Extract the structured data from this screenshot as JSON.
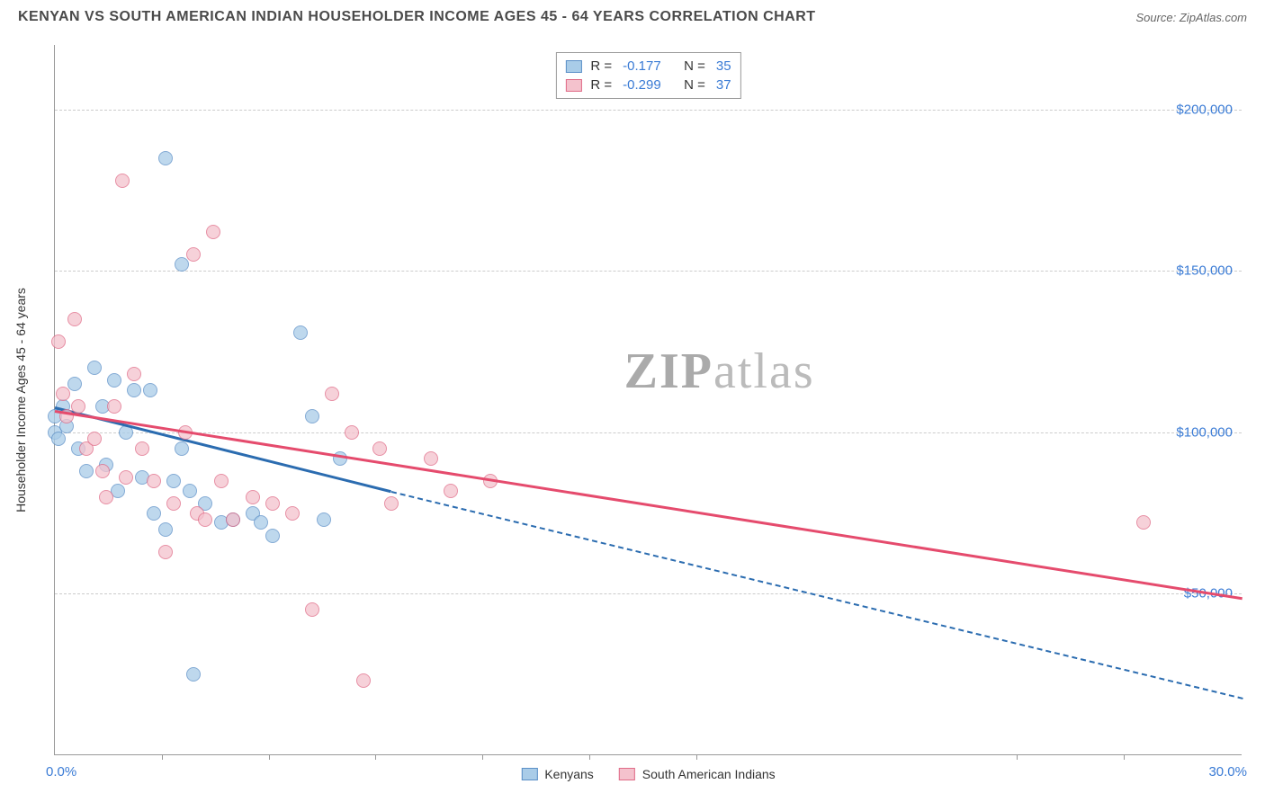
{
  "title": "KENYAN VS SOUTH AMERICAN INDIAN HOUSEHOLDER INCOME AGES 45 - 64 YEARS CORRELATION CHART",
  "source": "Source: ZipAtlas.com",
  "watermark_zip": "ZIP",
  "watermark_atlas": "atlas",
  "chart": {
    "type": "scatter",
    "y_axis_title": "Householder Income Ages 45 - 64 years",
    "xlim": [
      0,
      30
    ],
    "ylim": [
      0,
      220000
    ],
    "x_start_label": "0.0%",
    "x_end_label": "30.0%",
    "x_ticks": [
      2.7,
      5.4,
      8.1,
      10.8,
      13.5,
      16.2,
      24.3,
      27.0
    ],
    "y_ticks": [
      {
        "v": 50000,
        "label": "$50,000"
      },
      {
        "v": 100000,
        "label": "$100,000"
      },
      {
        "v": 150000,
        "label": "$150,000"
      },
      {
        "v": 200000,
        "label": "$200,000"
      }
    ],
    "background_color": "#ffffff",
    "grid_color": "#cccccc",
    "watermark_color": "#bbbbbb",
    "point_radius": 8,
    "series": [
      {
        "name": "Kenyans",
        "fill": "#a9cce8",
        "stroke": "#5b8fc7",
        "line_color": "#2b6cb0",
        "R": "-0.177",
        "N": "35",
        "trend": {
          "x1": 0.0,
          "y1": 108000,
          "x2": 8.5,
          "y2": 82000,
          "dash_x2": 30,
          "dash_y2": 18000
        },
        "points": [
          {
            "x": 0.0,
            "y": 105000
          },
          {
            "x": 0.0,
            "y": 100000
          },
          {
            "x": 0.1,
            "y": 98000
          },
          {
            "x": 0.2,
            "y": 108000
          },
          {
            "x": 0.3,
            "y": 102000
          },
          {
            "x": 0.5,
            "y": 115000
          },
          {
            "x": 0.6,
            "y": 95000
          },
          {
            "x": 0.8,
            "y": 88000
          },
          {
            "x": 1.0,
            "y": 120000
          },
          {
            "x": 1.2,
            "y": 108000
          },
          {
            "x": 1.3,
            "y": 90000
          },
          {
            "x": 1.5,
            "y": 116000
          },
          {
            "x": 1.6,
            "y": 82000
          },
          {
            "x": 1.8,
            "y": 100000
          },
          {
            "x": 2.0,
            "y": 113000
          },
          {
            "x": 2.2,
            "y": 86000
          },
          {
            "x": 2.4,
            "y": 113000
          },
          {
            "x": 2.5,
            "y": 75000
          },
          {
            "x": 2.8,
            "y": 185000
          },
          {
            "x": 2.8,
            "y": 70000
          },
          {
            "x": 3.0,
            "y": 85000
          },
          {
            "x": 3.2,
            "y": 152000
          },
          {
            "x": 3.2,
            "y": 95000
          },
          {
            "x": 3.4,
            "y": 82000
          },
          {
            "x": 3.5,
            "y": 25000
          },
          {
            "x": 3.8,
            "y": 78000
          },
          {
            "x": 4.2,
            "y": 72000
          },
          {
            "x": 4.5,
            "y": 73000
          },
          {
            "x": 5.0,
            "y": 75000
          },
          {
            "x": 5.2,
            "y": 72000
          },
          {
            "x": 5.5,
            "y": 68000
          },
          {
            "x": 6.2,
            "y": 131000
          },
          {
            "x": 6.5,
            "y": 105000
          },
          {
            "x": 6.8,
            "y": 73000
          },
          {
            "x": 7.2,
            "y": 92000
          }
        ]
      },
      {
        "name": "South American Indians",
        "fill": "#f4c2cd",
        "stroke": "#e06b87",
        "line_color": "#e54b6d",
        "R": "-0.299",
        "N": "37",
        "trend": {
          "x1": 0.0,
          "y1": 107000,
          "x2": 30,
          "y2": 49000
        },
        "points": [
          {
            "x": 0.1,
            "y": 128000
          },
          {
            "x": 0.2,
            "y": 112000
          },
          {
            "x": 0.3,
            "y": 105000
          },
          {
            "x": 0.5,
            "y": 135000
          },
          {
            "x": 0.6,
            "y": 108000
          },
          {
            "x": 0.8,
            "y": 95000
          },
          {
            "x": 1.0,
            "y": 98000
          },
          {
            "x": 1.2,
            "y": 88000
          },
          {
            "x": 1.3,
            "y": 80000
          },
          {
            "x": 1.5,
            "y": 108000
          },
          {
            "x": 1.7,
            "y": 178000
          },
          {
            "x": 1.8,
            "y": 86000
          },
          {
            "x": 2.0,
            "y": 118000
          },
          {
            "x": 2.2,
            "y": 95000
          },
          {
            "x": 2.5,
            "y": 85000
          },
          {
            "x": 2.8,
            "y": 63000
          },
          {
            "x": 3.0,
            "y": 78000
          },
          {
            "x": 3.3,
            "y": 100000
          },
          {
            "x": 3.5,
            "y": 155000
          },
          {
            "x": 3.6,
            "y": 75000
          },
          {
            "x": 3.8,
            "y": 73000
          },
          {
            "x": 4.0,
            "y": 162000
          },
          {
            "x": 4.2,
            "y": 85000
          },
          {
            "x": 4.5,
            "y": 73000
          },
          {
            "x": 5.0,
            "y": 80000
          },
          {
            "x": 5.5,
            "y": 78000
          },
          {
            "x": 6.0,
            "y": 75000
          },
          {
            "x": 6.5,
            "y": 45000
          },
          {
            "x": 7.0,
            "y": 112000
          },
          {
            "x": 7.5,
            "y": 100000
          },
          {
            "x": 7.8,
            "y": 23000
          },
          {
            "x": 8.2,
            "y": 95000
          },
          {
            "x": 8.5,
            "y": 78000
          },
          {
            "x": 9.5,
            "y": 92000
          },
          {
            "x": 10.0,
            "y": 82000
          },
          {
            "x": 11.0,
            "y": 85000
          },
          {
            "x": 27.5,
            "y": 72000
          }
        ]
      }
    ]
  },
  "labels": {
    "R": "R =",
    "N": "N ="
  }
}
